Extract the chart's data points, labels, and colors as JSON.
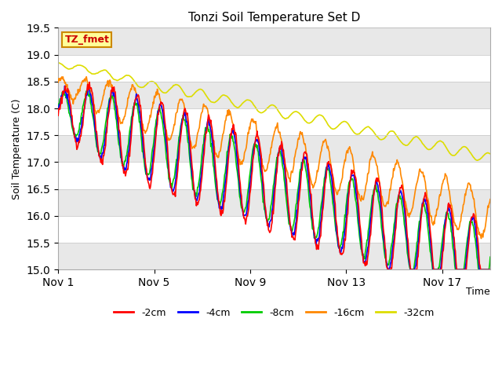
{
  "title": "Tonzi Soil Temperature Set D",
  "xlabel": "Time",
  "ylabel": "Soil Temperature (C)",
  "ylim": [
    15.0,
    19.5
  ],
  "yticks": [
    15.0,
    15.5,
    16.0,
    16.5,
    17.0,
    17.5,
    18.0,
    18.5,
    19.0,
    19.5
  ],
  "xtick_labels": [
    "Nov 1",
    "Nov 5",
    "Nov 9",
    "Nov 13",
    "Nov 17"
  ],
  "xtick_positions": [
    0,
    4,
    8,
    12,
    16
  ],
  "legend_labels": [
    "-2cm",
    "-4cm",
    "-8cm",
    "-16cm",
    "-32cm"
  ],
  "line_colors": [
    "#ff0000",
    "#0000ff",
    "#00cc00",
    "#ff8800",
    "#dddd00"
  ],
  "annotation_text": "TZ_fmet",
  "annotation_bg": "#ffff99",
  "annotation_border": "#cc8800",
  "plot_bg": "#ffffff",
  "band_color": "#e8e8e8",
  "days": 18,
  "n_points": 720
}
